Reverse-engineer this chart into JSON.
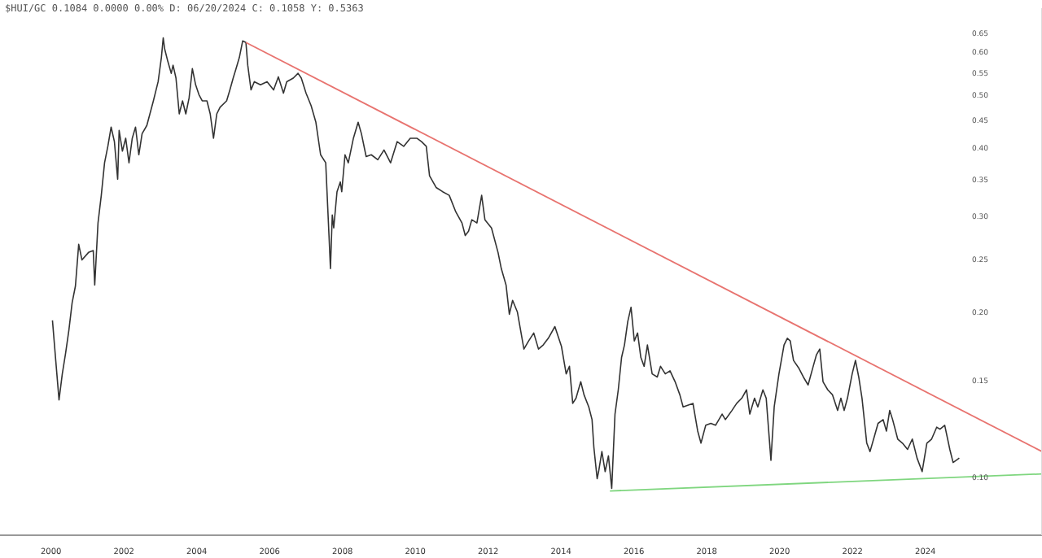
{
  "chart_data": {
    "type": "line",
    "title": "$HUI/GC 0.1084 0.0000 0.00% D: 06/20/2024 C: 0.1058 Y: 0.5363",
    "log": "y",
    "grid": false,
    "marker": "none",
    "line_style": "solid",
    "xlim": [
      1998.6,
      2027.2
    ],
    "xticks": [
      2000,
      2002,
      2004,
      2006,
      2008,
      2010,
      2012,
      2014,
      2016,
      2018,
      2020,
      2022,
      2024
    ],
    "ylim": [
      0.078,
      0.72
    ],
    "yticks": [
      {
        "value": 0.1,
        "label": "0.10"
      },
      {
        "value": 0.15,
        "label": "0.15"
      },
      {
        "value": 0.2,
        "label": "0.20"
      },
      {
        "value": 0.25,
        "label": "0.25"
      },
      {
        "value": 0.3,
        "label": "0.30"
      },
      {
        "value": 0.35,
        "label": "0.35"
      },
      {
        "value": 0.4,
        "label": "0.40"
      },
      {
        "value": 0.45,
        "label": "0.45"
      },
      {
        "value": 0.5,
        "label": "0.50"
      },
      {
        "value": 0.55,
        "label": "0.55"
      },
      {
        "value": 0.6,
        "label": "0.60"
      },
      {
        "value": 0.65,
        "label": "0.65"
      }
    ],
    "series": [
      {
        "color": "#333333",
        "x": [
          2000.04,
          2000.13,
          2000.22,
          2000.31,
          2000.4,
          2000.49,
          2000.58,
          2000.67,
          2000.76,
          2000.85,
          2001.03,
          2001.16,
          2001.2,
          2001.29,
          2001.38,
          2001.47,
          2001.56,
          2001.65,
          2001.74,
          2001.83,
          2001.87,
          2001.96,
          2002.05,
          2002.14,
          2002.23,
          2002.32,
          2002.41,
          2002.5,
          2002.63,
          2002.81,
          2002.94,
          2003.03,
          2003.08,
          2003.12,
          2003.21,
          2003.3,
          2003.35,
          2003.43,
          2003.52,
          2003.61,
          2003.7,
          2003.79,
          2003.88,
          2003.97,
          2004.06,
          2004.15,
          2004.28,
          2004.37,
          2004.46,
          2004.55,
          2004.64,
          2004.82,
          2004.91,
          2005.0,
          2005.08,
          2005.17,
          2005.26,
          2005.35,
          2005.4,
          2005.49,
          2005.58,
          2005.75,
          2005.93,
          2006.11,
          2006.24,
          2006.38,
          2006.47,
          2006.65,
          2006.78,
          2006.87,
          2007.0,
          2007.14,
          2007.27,
          2007.4,
          2007.54,
          2007.63,
          2007.67,
          2007.72,
          2007.76,
          2007.85,
          2007.94,
          2007.98,
          2008.07,
          2008.16,
          2008.3,
          2008.43,
          2008.52,
          2008.65,
          2008.79,
          2008.97,
          2009.14,
          2009.32,
          2009.5,
          2009.68,
          2009.86,
          2010.04,
          2010.17,
          2010.3,
          2010.39,
          2010.57,
          2010.75,
          2010.93,
          2011.11,
          2011.28,
          2011.37,
          2011.46,
          2011.55,
          2011.69,
          2011.82,
          2011.91,
          2012.09,
          2012.27,
          2012.36,
          2012.49,
          2012.58,
          2012.67,
          2012.8,
          2012.98,
          2013.11,
          2013.25,
          2013.38,
          2013.51,
          2013.65,
          2013.83,
          2014.01,
          2014.14,
          2014.23,
          2014.32,
          2014.41,
          2014.54,
          2014.63,
          2014.76,
          2014.85,
          2014.9,
          2014.99,
          2015.03,
          2015.12,
          2015.21,
          2015.3,
          2015.39,
          2015.48,
          2015.57,
          2015.66,
          2015.74,
          2015.83,
          2015.92,
          2016.01,
          2016.1,
          2016.19,
          2016.28,
          2016.37,
          2016.5,
          2016.64,
          2016.73,
          2016.86,
          2016.99,
          2017.13,
          2017.26,
          2017.35,
          2017.62,
          2017.75,
          2017.84,
          2017.97,
          2018.11,
          2018.24,
          2018.42,
          2018.51,
          2018.69,
          2018.82,
          2018.96,
          2019.09,
          2019.18,
          2019.31,
          2019.4,
          2019.54,
          2019.63,
          2019.76,
          2019.85,
          2019.98,
          2020.12,
          2020.21,
          2020.29,
          2020.38,
          2020.52,
          2020.65,
          2020.78,
          2020.92,
          2021.01,
          2021.1,
          2021.19,
          2021.32,
          2021.45,
          2021.59,
          2021.68,
          2021.77,
          2021.86,
          2021.99,
          2022.08,
          2022.17,
          2022.26,
          2022.39,
          2022.48,
          2022.61,
          2022.7,
          2022.84,
          2022.93,
          2023.02,
          2023.1,
          2023.24,
          2023.37,
          2023.51,
          2023.64,
          2023.77,
          2023.91,
          2024.04,
          2024.17,
          2024.31,
          2024.4,
          2024.53,
          2024.67,
          2024.76,
          2024.93
        ],
        "values": [
          0.193,
          0.163,
          0.138,
          0.154,
          0.168,
          0.185,
          0.208,
          0.223,
          0.266,
          0.249,
          0.257,
          0.259,
          0.224,
          0.291,
          0.327,
          0.375,
          0.402,
          0.436,
          0.41,
          0.35,
          0.43,
          0.394,
          0.416,
          0.375,
          0.416,
          0.436,
          0.388,
          0.424,
          0.439,
          0.487,
          0.528,
          0.585,
          0.635,
          0.606,
          0.574,
          0.547,
          0.566,
          0.536,
          0.461,
          0.487,
          0.461,
          0.493,
          0.558,
          0.521,
          0.5,
          0.487,
          0.487,
          0.461,
          0.416,
          0.461,
          0.474,
          0.487,
          0.51,
          0.536,
          0.558,
          0.585,
          0.627,
          0.623,
          0.566,
          0.51,
          0.528,
          0.521,
          0.528,
          0.51,
          0.539,
          0.503,
          0.528,
          0.536,
          0.547,
          0.536,
          0.503,
          0.477,
          0.445,
          0.388,
          0.375,
          0.276,
          0.24,
          0.301,
          0.285,
          0.332,
          0.346,
          0.332,
          0.388,
          0.375,
          0.416,
          0.445,
          0.424,
          0.385,
          0.388,
          0.38,
          0.396,
          0.375,
          0.41,
          0.402,
          0.416,
          0.416,
          0.41,
          0.402,
          0.355,
          0.338,
          0.332,
          0.327,
          0.305,
          0.291,
          0.276,
          0.281,
          0.295,
          0.291,
          0.327,
          0.295,
          0.285,
          0.257,
          0.24,
          0.224,
          0.198,
          0.21,
          0.2,
          0.171,
          0.177,
          0.183,
          0.171,
          0.174,
          0.179,
          0.188,
          0.173,
          0.154,
          0.159,
          0.136,
          0.139,
          0.149,
          0.141,
          0.134,
          0.127,
          0.113,
          0.099,
          0.102,
          0.111,
          0.102,
          0.109,
          0.095,
          0.13,
          0.144,
          0.165,
          0.174,
          0.192,
          0.204,
          0.177,
          0.183,
          0.165,
          0.159,
          0.174,
          0.154,
          0.152,
          0.159,
          0.154,
          0.156,
          0.149,
          0.141,
          0.134,
          0.136,
          0.121,
          0.115,
          0.124,
          0.125,
          0.124,
          0.13,
          0.127,
          0.132,
          0.136,
          0.139,
          0.144,
          0.13,
          0.139,
          0.134,
          0.144,
          0.139,
          0.107,
          0.134,
          0.154,
          0.174,
          0.179,
          0.177,
          0.163,
          0.158,
          0.152,
          0.147,
          0.159,
          0.167,
          0.171,
          0.149,
          0.144,
          0.141,
          0.132,
          0.139,
          0.132,
          0.139,
          0.154,
          0.163,
          0.152,
          0.139,
          0.115,
          0.111,
          0.119,
          0.125,
          0.127,
          0.121,
          0.132,
          0.127,
          0.117,
          0.115,
          0.112,
          0.117,
          0.108,
          0.102,
          0.115,
          0.117,
          0.123,
          0.122,
          0.124,
          0.112,
          0.106,
          0.108
        ]
      },
      {
        "type": "line",
        "color": "#e8736f",
        "x": [
          2005.35,
          2027.2
        ],
        "values": [
          0.623,
          0.111
        ]
      },
      {
        "type": "line",
        "color": "#7fd67f",
        "x": [
          2015.34,
          2027.2
        ],
        "values": [
          0.094,
          0.101
        ]
      }
    ]
  }
}
